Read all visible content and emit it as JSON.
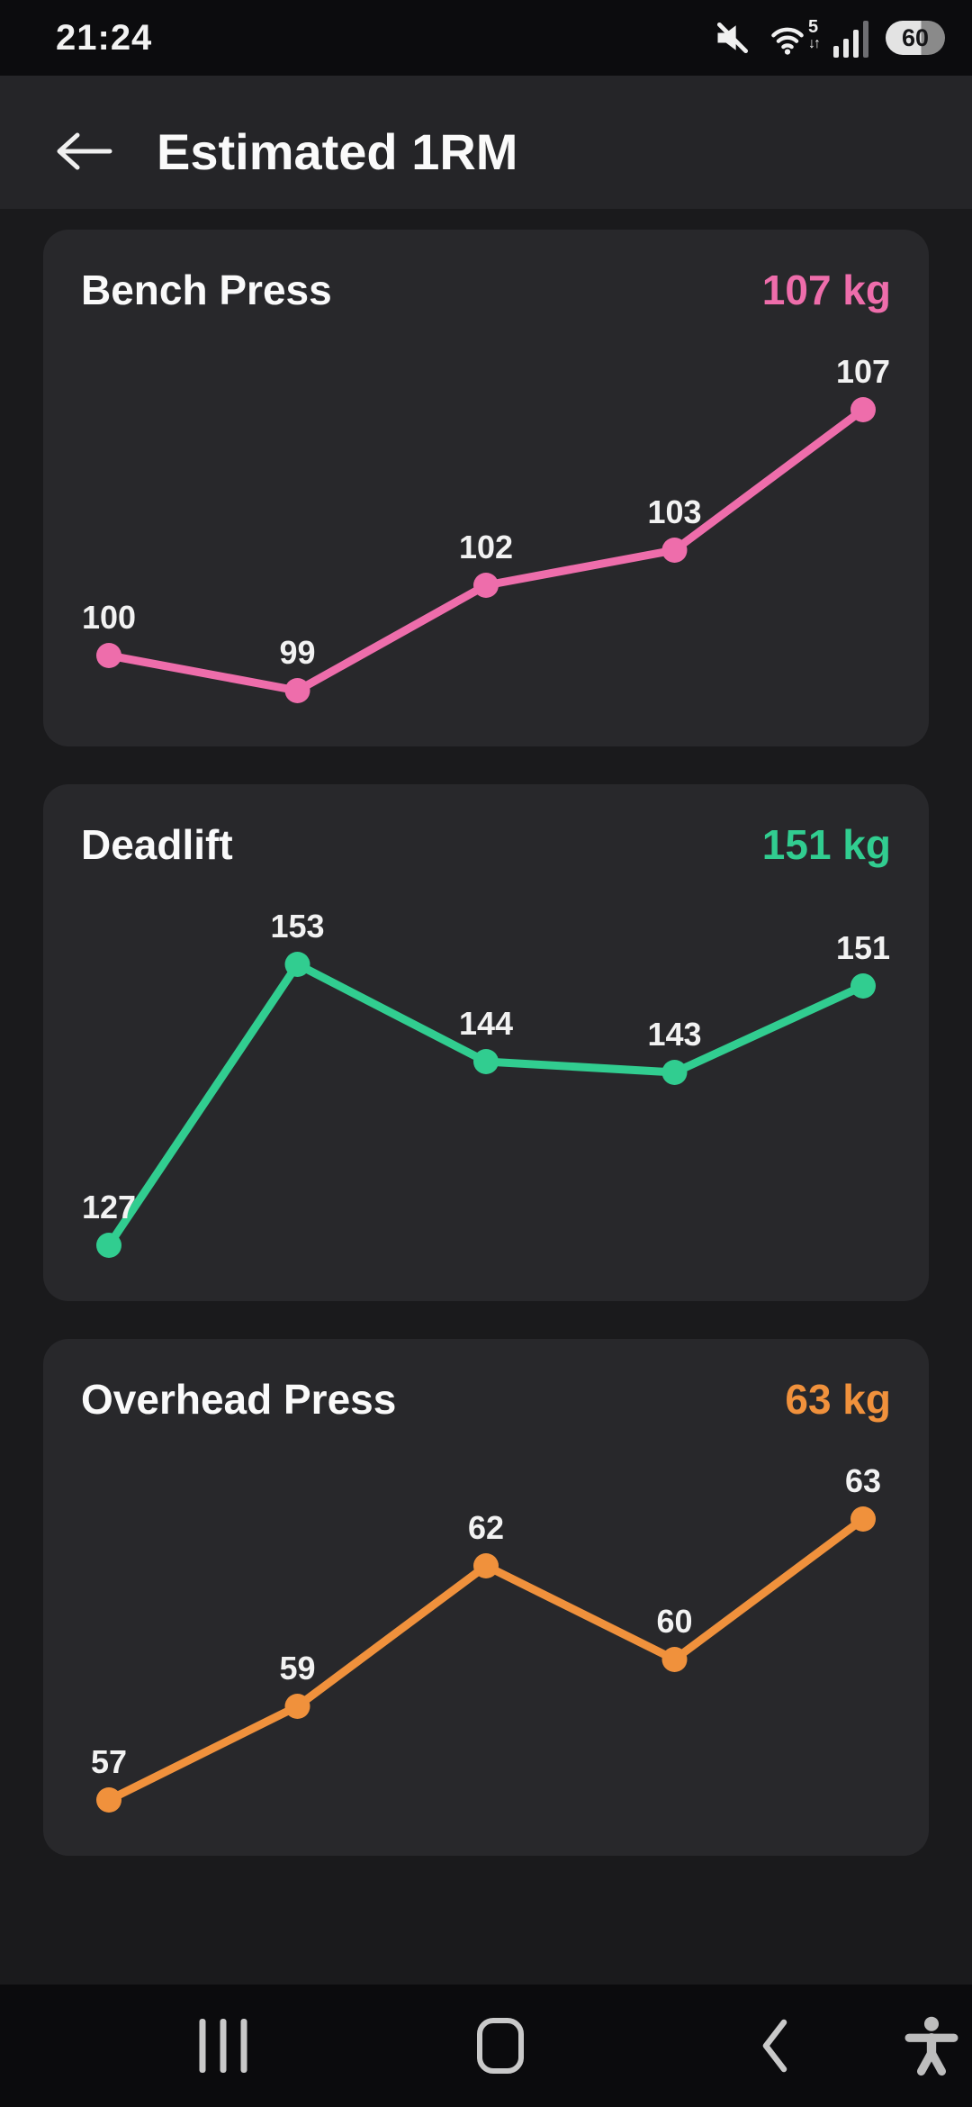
{
  "status_bar": {
    "time": "21:24",
    "mute_icon": "muted-speaker",
    "wifi_icon": "wifi-5g",
    "wifi_badge": "5",
    "wifi_arrows": "↓↑",
    "signal_icon": "cellular-signal",
    "battery_percent": 60,
    "battery_label": "60"
  },
  "header": {
    "back_icon": "left-arrow",
    "title": "Estimated 1RM"
  },
  "chart_data": [
    {
      "type": "line",
      "title": "Bench Press",
      "current_value": "107 kg",
      "unit": "kg",
      "color": "#ee6dab",
      "x": [
        1,
        2,
        3,
        4,
        5
      ],
      "values": [
        100,
        99,
        102,
        103,
        107
      ],
      "point_labels": [
        "100",
        "99",
        "102",
        "103",
        "107"
      ],
      "grid": false,
      "legend": "none",
      "axes": "hidden"
    },
    {
      "type": "line",
      "title": "Deadlift",
      "current_value": "151 kg",
      "unit": "kg",
      "color": "#31cd90",
      "x": [
        1,
        2,
        3,
        4,
        5
      ],
      "values": [
        127,
        153,
        144,
        143,
        151
      ],
      "point_labels": [
        "127",
        "153",
        "144",
        "143",
        "151"
      ],
      "grid": false,
      "legend": "none",
      "axes": "hidden"
    },
    {
      "type": "line",
      "title": "Overhead Press",
      "current_value": "63 kg",
      "unit": "kg",
      "color": "#f0913c",
      "x": [
        1,
        2,
        3,
        4,
        5
      ],
      "values": [
        57,
        59,
        62,
        60,
        63
      ],
      "point_labels": [
        "57",
        "59",
        "62",
        "60",
        "63"
      ],
      "grid": false,
      "legend": "none",
      "axes": "hidden"
    }
  ],
  "nav_bar": {
    "recents_icon": "recent-apps",
    "home_icon": "home",
    "back_icon": "back-chevron",
    "accessibility_icon": "accessibility-person"
  },
  "colors": {
    "page_bg": "#1a1a1c",
    "card_bg": "#28282b",
    "status_bar_bg": "#0c0c0e",
    "app_bar_bg": "#252528",
    "nav_bar_bg": "#0b0b0d",
    "text_primary": "#f2f2f2",
    "nav_icon": "#c9c9c9",
    "bench_accent": "#ee6dab",
    "deadlift_accent": "#31cd90",
    "ohp_accent": "#f0913c"
  }
}
